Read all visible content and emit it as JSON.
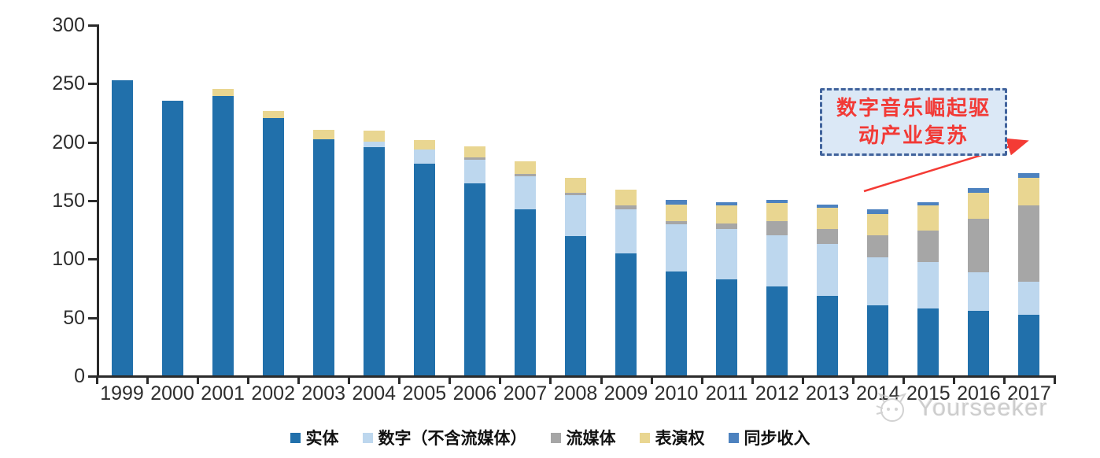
{
  "chart_data": {
    "type": "bar",
    "stacked": true,
    "title": "",
    "xlabel": "",
    "ylabel": "",
    "categories": [
      "1999",
      "2000",
      "2001",
      "2002",
      "2003",
      "2004",
      "2005",
      "2006",
      "2007",
      "2008",
      "2009",
      "2010",
      "2011",
      "2012",
      "2013",
      "2014",
      "2015",
      "2016",
      "2017"
    ],
    "series": [
      {
        "name": "实体",
        "color": "#2170ab",
        "values": [
          252,
          235,
          239,
          220,
          202,
          195,
          181,
          164,
          142,
          119,
          104,
          89,
          82,
          76,
          68,
          60,
          57,
          55,
          52
        ]
      },
      {
        "name": "数字（不含流媒体）",
        "color": "#bdd7ee",
        "values": [
          0,
          0,
          0,
          0,
          0,
          5,
          12,
          20,
          28,
          35,
          38,
          40,
          43,
          44,
          44,
          41,
          40,
          33,
          28
        ]
      },
      {
        "name": "流媒体",
        "color": "#a6a6a6",
        "values": [
          0,
          0,
          0,
          0,
          0,
          0,
          0,
          2,
          2,
          2,
          3,
          3,
          5,
          12,
          13,
          19,
          27,
          46,
          65
        ]
      },
      {
        "name": "表演权",
        "color": "#e9d691",
        "values": [
          0,
          0,
          6,
          6,
          8,
          9,
          8,
          10,
          11,
          13,
          14,
          14,
          15,
          15,
          18,
          18,
          21,
          22,
          24
        ]
      },
      {
        "name": "同步收入",
        "color": "#4d82bf",
        "values": [
          0,
          0,
          0,
          0,
          0,
          0,
          0,
          0,
          0,
          0,
          0,
          4,
          3,
          3,
          3,
          4,
          3,
          4,
          4
        ]
      }
    ],
    "ylim": [
      0,
      300
    ],
    "yticks": [
      0,
      50,
      100,
      150,
      200,
      250,
      300
    ],
    "grid": false,
    "legend_position": "bottom"
  },
  "annotation": {
    "line1": "数字音乐崛起驱",
    "line2": "动产业复苏",
    "text_color": "#f23a36",
    "box_fill": "#dbe8f6",
    "box_border_color": "#41639c",
    "arrow_color": "#f43b35"
  },
  "watermark": {
    "text": "Yourseeker"
  }
}
